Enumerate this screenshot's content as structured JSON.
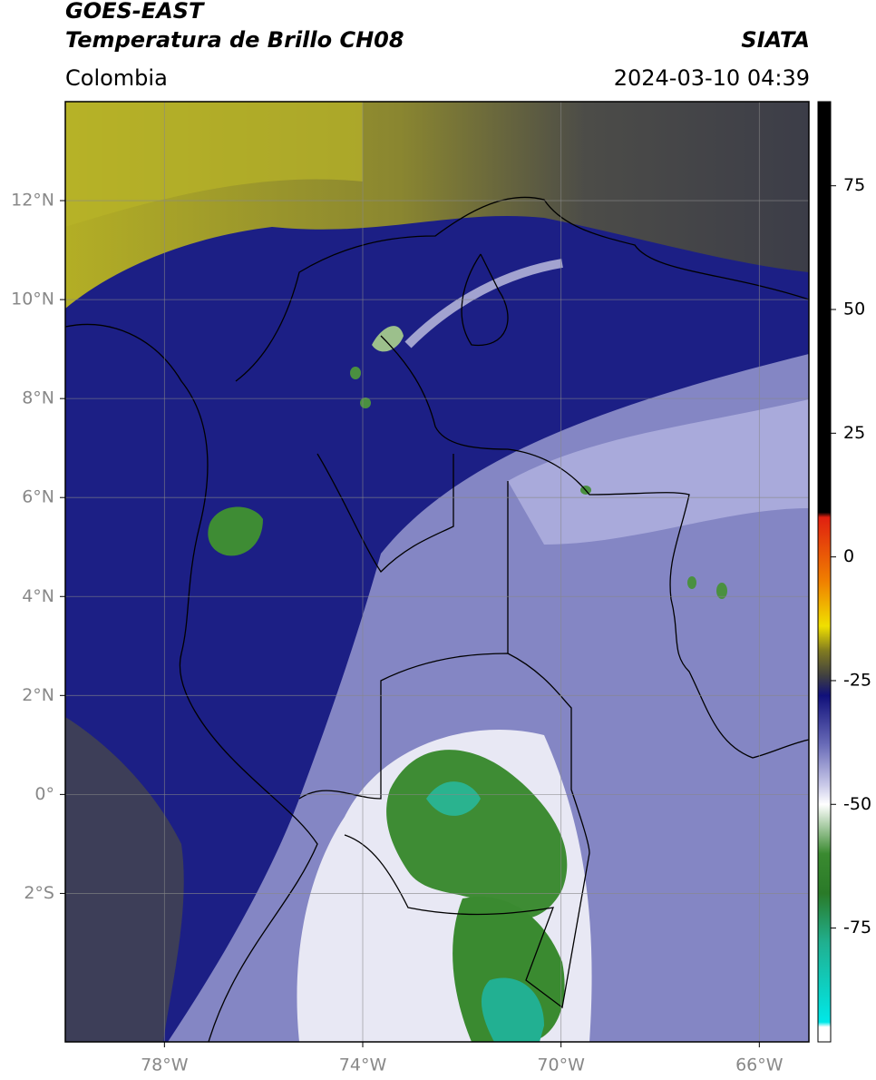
{
  "header": {
    "title": "GOES-EAST",
    "subtitle": "Temperatura de Brillo CH08",
    "region": "Colombia",
    "source": "SIATA",
    "datetime": "2024-03-10 04:39"
  },
  "map": {
    "xlim": [
      -80,
      -65
    ],
    "ylim": [
      -5,
      14
    ],
    "xticks": [
      {
        "value": -78,
        "label": "78°W"
      },
      {
        "value": -74,
        "label": "74°W"
      },
      {
        "value": -70,
        "label": "70°W"
      },
      {
        "value": -66,
        "label": "66°W"
      }
    ],
    "yticks": [
      {
        "value": 12,
        "label": "12°N"
      },
      {
        "value": 10,
        "label": "10°N"
      },
      {
        "value": 8,
        "label": "8°N"
      },
      {
        "value": 6,
        "label": "6°N"
      },
      {
        "value": 4,
        "label": "4°N"
      },
      {
        "value": 2,
        "label": "2°N"
      },
      {
        "value": 0,
        "label": "0°"
      },
      {
        "value": -2,
        "label": "2°S"
      }
    ],
    "grid": true
  },
  "colorbar": {
    "clim": [
      -98,
      92
    ],
    "ticks": [
      75,
      50,
      25,
      0,
      -25,
      -50,
      -75
    ],
    "stops": [
      {
        "value": 92,
        "color": "#000000"
      },
      {
        "value": 9,
        "color": "#000000"
      },
      {
        "value": 8,
        "color": "#e02010"
      },
      {
        "value": -5,
        "color": "#f08000"
      },
      {
        "value": -14,
        "color": "#f0e000"
      },
      {
        "value": -19,
        "color": "#807a20"
      },
      {
        "value": -24,
        "color": "#404040"
      },
      {
        "value": -28,
        "color": "#10107a"
      },
      {
        "value": -38,
        "color": "#6a6cb8"
      },
      {
        "value": -46,
        "color": "#c8c8e8"
      },
      {
        "value": -50,
        "color": "#ffffff"
      },
      {
        "value": -60,
        "color": "#3a8a30"
      },
      {
        "value": -68,
        "color": "#2a7a28"
      },
      {
        "value": -78,
        "color": "#20b090"
      },
      {
        "value": -94,
        "color": "#00e8e8"
      },
      {
        "value": -95,
        "color": "#ffffff"
      },
      {
        "value": -98,
        "color": "#ffffff"
      }
    ]
  }
}
